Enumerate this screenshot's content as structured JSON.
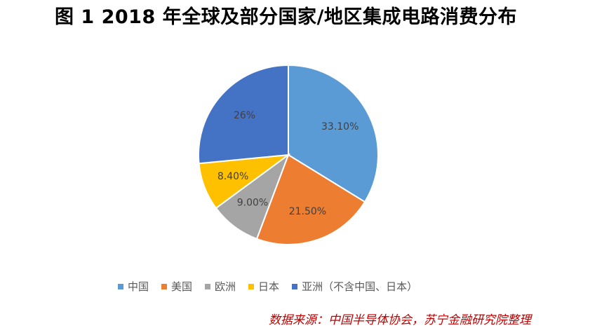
{
  "title": "图 1 2018 年全球及部分国家/地区集成电路消费分布",
  "source": "数据来源：中国半导体协会，苏宁金融研究院整理",
  "chart_data": {
    "type": "pie",
    "title": "图 1 2018 年全球及部分国家/地区集成电路消费分布",
    "categories": [
      "中国",
      "美国",
      "欧洲",
      "日本",
      "亚洲（不含中国、日本）"
    ],
    "values": [
      33.1,
      21.5,
      9.0,
      8.4,
      26
    ],
    "data_labels": [
      "33.10%",
      "21.50%",
      "9.00%",
      "8.40%",
      "26%"
    ],
    "colors": [
      "#5b9bd5",
      "#ed7d31",
      "#a5a5a5",
      "#ffc000",
      "#4472c4"
    ],
    "legend_position": "bottom"
  }
}
